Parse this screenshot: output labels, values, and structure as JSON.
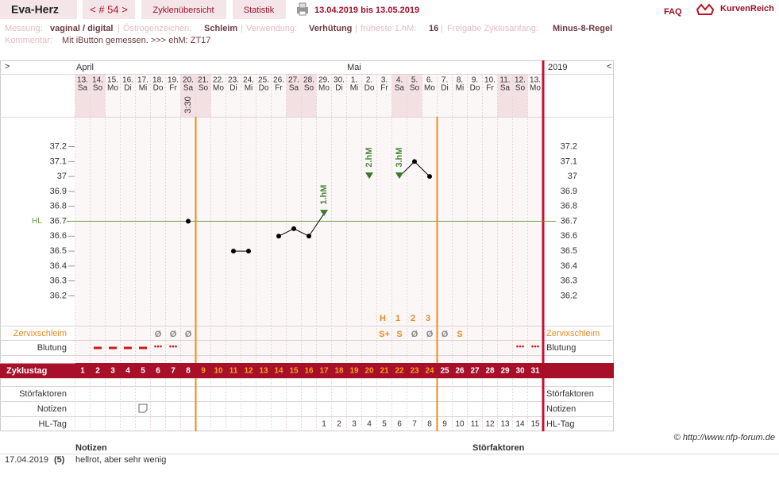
{
  "header": {
    "title": "Eva-Herz",
    "cycle": "< # 54 >",
    "tabs": [
      "Zyklenübersicht",
      "Statistik"
    ],
    "range": "13.04.2019 bis 13.05.2019",
    "faq": "FAQ",
    "brand": "KurvenReich"
  },
  "info": {
    "items": [
      {
        "label": "Messung:",
        "value": "vaginal / digital"
      },
      {
        "label": "Östrogenzeichen:",
        "value": "Schleim"
      },
      {
        "label": "Verwendung:",
        "value": "Verhütung"
      },
      {
        "label": "früheste 1.hM:",
        "value": "16"
      },
      {
        "label": "Freigabe Zyklusanfang:",
        "value": "Minus-8-Regel"
      }
    ],
    "separator": "|",
    "comment_label": "Kommentar:",
    "comment": "Mit iButton gemessen. >>> ehM: ZT17"
  },
  "chart": {
    "nav_left": ">",
    "nav_right": "<",
    "year": "2019",
    "months": [
      "April",
      "Mai"
    ],
    "days": [
      "13.",
      "14.",
      "15.",
      "16.",
      "17.",
      "18.",
      "19.",
      "20.",
      "21.",
      "22.",
      "23.",
      "24.",
      "25.",
      "26.",
      "27.",
      "28.",
      "29.",
      "30.",
      "1.",
      "2.",
      "3.",
      "4.",
      "5.",
      "6.",
      "7.",
      "8.",
      "9.",
      "10.",
      "11.",
      "12.",
      "13."
    ],
    "weekdays": [
      "Sa",
      "So",
      "Mo",
      "Di",
      "Mi",
      "Do",
      "Fr",
      "Sa",
      "So",
      "Mo",
      "Di",
      "Mi",
      "Do",
      "Fr",
      "Sa",
      "So",
      "Mo",
      "Di",
      "Mi",
      "Do",
      "Fr",
      "Sa",
      "So",
      "Mo",
      "Di",
      "Mi",
      "Do",
      "Fr",
      "Sa",
      "So",
      "Mo"
    ],
    "times": [
      null,
      null,
      null,
      null,
      null,
      null,
      null,
      "3:30",
      null,
      null,
      null,
      null,
      null,
      null,
      null,
      null,
      null,
      null,
      null,
      null,
      null,
      null,
      null,
      null,
      null,
      null,
      null,
      null,
      null,
      null,
      null
    ],
    "temperatures": [
      null,
      null,
      null,
      null,
      null,
      null,
      null,
      36.7,
      null,
      null,
      36.5,
      36.5,
      null,
      36.6,
      36.65,
      36.6,
      36.75,
      null,
      null,
      37,
      null,
      37,
      37.1,
      37,
      null,
      null,
      null,
      null,
      null,
      null,
      null
    ],
    "hm_labels": [
      null,
      null,
      null,
      null,
      null,
      null,
      null,
      null,
      null,
      null,
      null,
      null,
      null,
      null,
      null,
      null,
      "1.hM",
      null,
      null,
      "2.hM",
      null,
      "3.hM",
      null,
      null,
      null,
      null,
      null,
      null,
      null,
      null,
      null
    ],
    "ylim": [
      36.0,
      37.4
    ],
    "yticks": [
      36.2,
      36.3,
      36.4,
      36.5,
      36.6,
      36.7,
      36.8,
      36.9,
      37,
      37.1,
      37.2
    ],
    "hl": {
      "label": "HL",
      "value": 36.7
    },
    "zervix_label": "Zervixschleim",
    "zervix_eval": [
      null,
      null,
      null,
      null,
      null,
      null,
      null,
      null,
      null,
      null,
      null,
      null,
      null,
      null,
      null,
      null,
      null,
      null,
      null,
      null,
      "H",
      "1",
      "2",
      "3",
      null,
      null,
      null,
      null,
      null,
      null,
      null
    ],
    "zervix": [
      null,
      null,
      null,
      null,
      null,
      "Ø",
      "Ø",
      "Ø",
      null,
      null,
      null,
      null,
      null,
      null,
      null,
      null,
      null,
      null,
      null,
      null,
      "S+",
      "S",
      "Ø",
      "Ø",
      "Ø",
      "S",
      null,
      null,
      null,
      null,
      null
    ],
    "blutung_label": "Blutung",
    "blutung": [
      null,
      "▬",
      "▬",
      "▬",
      "▬",
      "•••",
      "•••",
      null,
      null,
      null,
      null,
      null,
      null,
      null,
      null,
      null,
      null,
      null,
      null,
      null,
      null,
      null,
      null,
      null,
      null,
      null,
      null,
      null,
      null,
      "•••",
      "•••"
    ],
    "zyklustag_label": "Zyklustag",
    "zyklustag": [
      1,
      2,
      3,
      4,
      5,
      6,
      7,
      8,
      9,
      10,
      11,
      12,
      13,
      14,
      15,
      16,
      17,
      18,
      19,
      20,
      21,
      22,
      23,
      24,
      25,
      26,
      27,
      28,
      29,
      30,
      31
    ],
    "stoer_label": "Störfaktoren",
    "notizen_label": "Notizen",
    "hltag_label": "HL-Tag",
    "hltag": [
      null,
      null,
      null,
      null,
      null,
      null,
      null,
      null,
      null,
      null,
      null,
      null,
      null,
      null,
      null,
      null,
      1,
      2,
      3,
      4,
      5,
      6,
      7,
      8,
      9,
      10,
      11,
      12,
      13,
      14,
      15
    ]
  },
  "footer": {
    "copyright": "© http://www.nfp-forum.de",
    "notes_header": "Notizen",
    "stoer_header": "Störfaktoren",
    "notes": [
      {
        "date": "17.04.2019",
        "cycle_day": {
          "value": 5,
          "label": "(5)"
        },
        "text": "hellrot, aber sehr wenig"
      }
    ]
  }
}
